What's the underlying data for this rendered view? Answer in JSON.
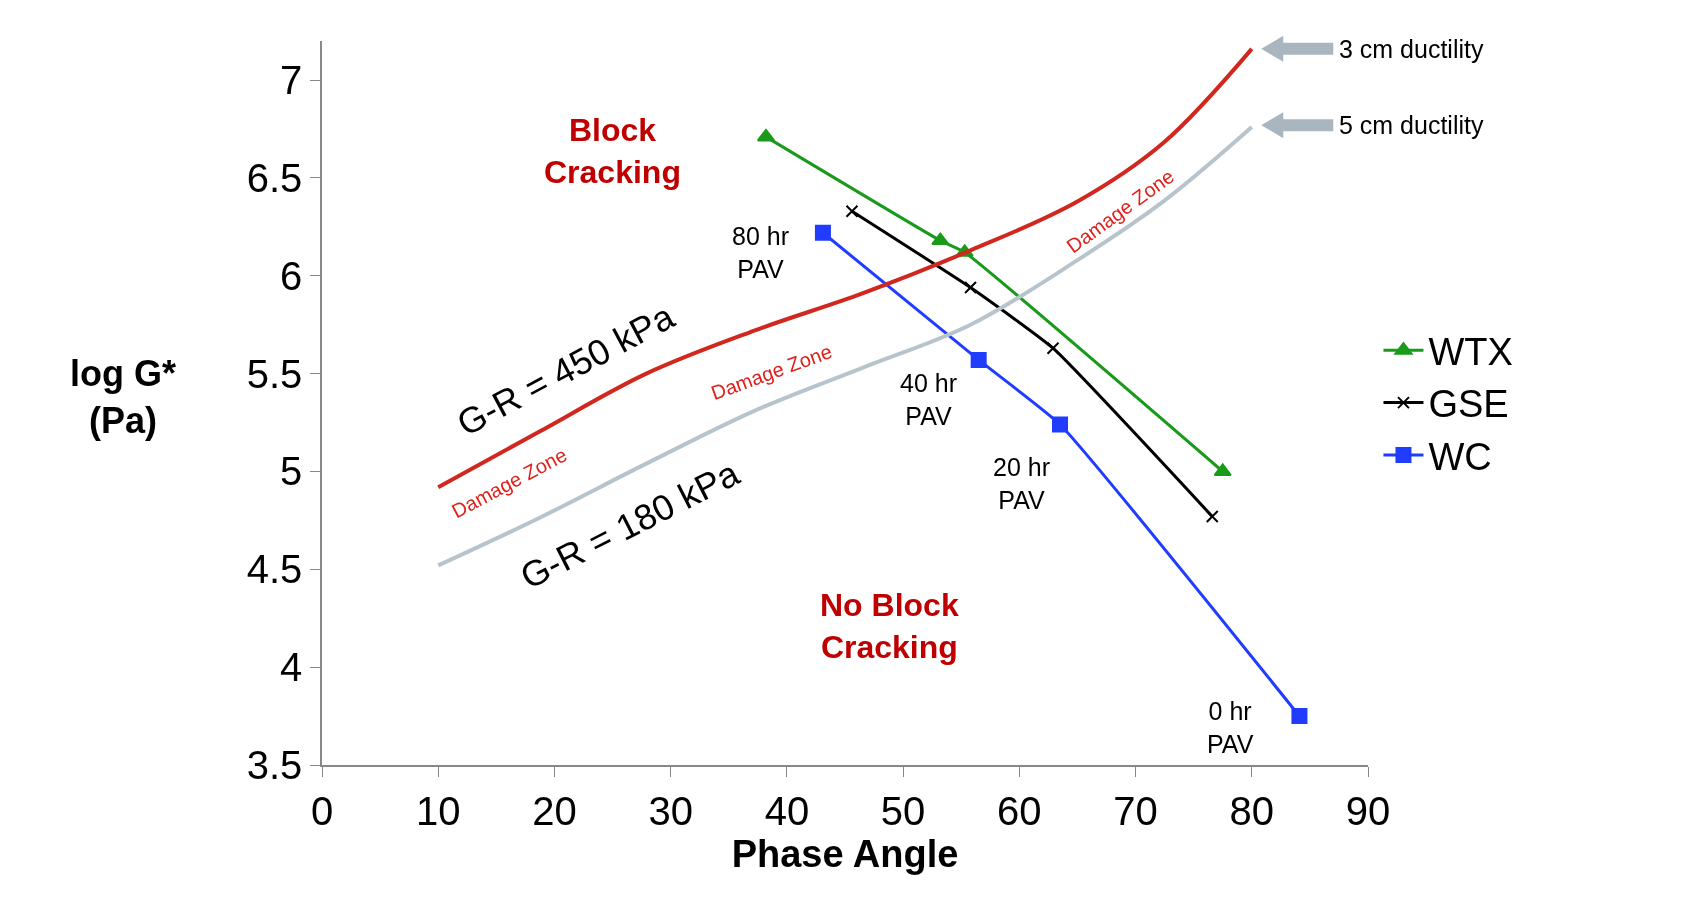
{
  "chart_data": {
    "type": "line",
    "xlabel": "Phase Angle",
    "ylabel": "log G*\n(Pa)",
    "xlim": [
      0,
      90
    ],
    "xticks": [
      0,
      10,
      20,
      30,
      40,
      50,
      60,
      70,
      80,
      90
    ],
    "ylim": [
      3.5,
      7.2
    ],
    "yticks": [
      3.5,
      4,
      4.5,
      5,
      5.5,
      6,
      6.5,
      7
    ],
    "grid": false,
    "legend": "right",
    "line_style": "solid",
    "series": [
      {
        "name": "WTX",
        "color": "#1a9a1a",
        "marker": "triangle",
        "x": [
          38.2,
          53.2,
          55.3,
          77.5
        ],
        "values": [
          6.71,
          6.18,
          6.12,
          5.0
        ]
      },
      {
        "name": "GSE",
        "color": "#000000",
        "marker": "cross",
        "x": [
          45.6,
          55.8,
          62.9,
          76.6
        ],
        "values": [
          6.33,
          5.94,
          5.63,
          4.77
        ]
      },
      {
        "name": "WC",
        "color": "#1f3cff",
        "marker": "square",
        "x": [
          43.1,
          56.5,
          63.5,
          84.1
        ],
        "values": [
          6.22,
          5.57,
          5.24,
          3.75
        ]
      },
      {
        "color": "#d0281e",
        "marker": "none",
        "x": [
          10,
          18.6,
          27.9,
          37.2,
          46.5,
          55.8,
          65,
          72.4,
          80
        ],
        "values": [
          4.92,
          5.2,
          5.5,
          5.72,
          5.91,
          6.13,
          6.38,
          6.68,
          7.16
        ]
      },
      {
        "color": "#b8c4cc",
        "marker": "none",
        "x": [
          10,
          18.6,
          27.9,
          37.2,
          46.5,
          55.8,
          65,
          72.4,
          80
        ],
        "values": [
          4.52,
          4.76,
          5.04,
          5.31,
          5.53,
          5.75,
          6.08,
          6.38,
          6.76
        ]
      }
    ],
    "annotations": [
      "Block Cracking",
      "No Block Cracking",
      "G-R = 450 kPa",
      "G-R = 180 kPa",
      "Damage Zone",
      "Damage Zone",
      "Damage Zone",
      "80 hr PAV",
      "40 hr PAV",
      "20 hr PAV",
      "0 hr PAV",
      "3 cm ductility",
      "5 cm ductility"
    ]
  }
}
